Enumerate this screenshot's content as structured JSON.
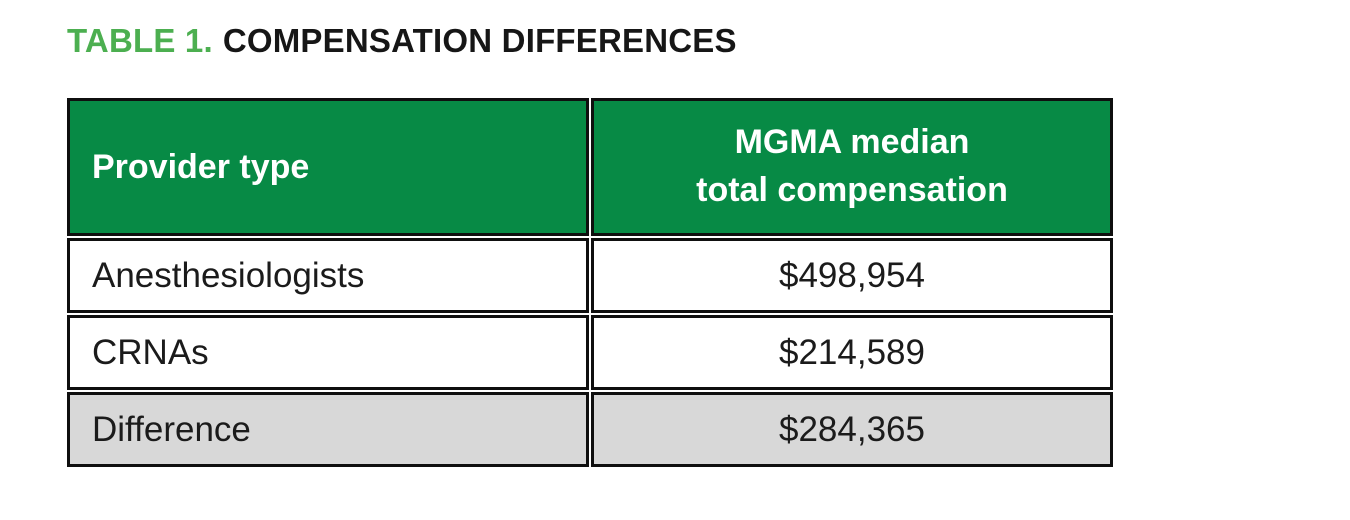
{
  "title": {
    "prefix": "TABLE 1.",
    "text": "COMPENSATION DIFFERENCES"
  },
  "table": {
    "header": {
      "provider_type": "Provider type",
      "compensation_line1": "MGMA median",
      "compensation_line2": "total compensation"
    },
    "rows": [
      {
        "provider": "Anesthesiologists",
        "value": "$498,954"
      },
      {
        "provider": "CRNAs",
        "value": "$214,589"
      },
      {
        "provider": "Difference",
        "value": "$284,365"
      }
    ]
  },
  "colors": {
    "header_green": "#078a45",
    "title_green": "#4caf50",
    "title_black": "#161616",
    "highlight_gray": "#d8d8d8",
    "border_black": "#0f0f0f"
  },
  "chart_data": {
    "type": "table",
    "title": "TABLE 1. COMPENSATION DIFFERENCES",
    "columns": [
      "Provider type",
      "MGMA median total compensation"
    ],
    "rows": [
      [
        "Anesthesiologists",
        "$498,954"
      ],
      [
        "CRNAs",
        "$214,589"
      ],
      [
        "Difference",
        "$284,365"
      ]
    ],
    "values_numeric": {
      "Anesthesiologists": 498954,
      "CRNAs": 214589,
      "Difference": 284365
    }
  }
}
